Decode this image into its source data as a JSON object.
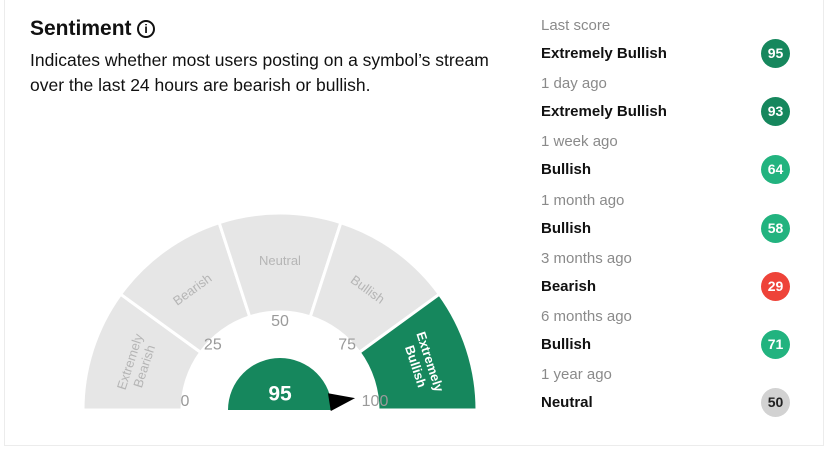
{
  "header": {
    "title": "Sentiment",
    "description": "Indicates whether most users posting on a symbol’s stream over the last 24 hours are bearish or bullish."
  },
  "gauge": {
    "value": 95,
    "ticks": [
      0,
      25,
      50,
      75,
      100
    ],
    "segments": [
      "Extremely Bearish",
      "Bearish",
      "Neutral",
      "Bullish",
      "Extremely Bullish"
    ],
    "active_color": "#16875d",
    "idle_color": "#e6e6e6"
  },
  "history": [
    {
      "period": "Last score",
      "label": "Extremely Bullish",
      "score": 95,
      "color": "#16875d"
    },
    {
      "period": "1 day ago",
      "label": "Extremely Bullish",
      "score": 93,
      "color": "#16875d"
    },
    {
      "period": "1 week ago",
      "label": "Bullish",
      "score": 64,
      "color": "#22b37f"
    },
    {
      "period": "1 month ago",
      "label": "Bullish",
      "score": 58,
      "color": "#22b37f"
    },
    {
      "period": "3 months ago",
      "label": "Bearish",
      "score": 29,
      "color": "#ee4339"
    },
    {
      "period": "6 months ago",
      "label": "Bullish",
      "score": 71,
      "color": "#22b37f"
    },
    {
      "period": "1 year ago",
      "label": "Neutral",
      "score": 50,
      "color": "#d2d2d2"
    }
  ]
}
